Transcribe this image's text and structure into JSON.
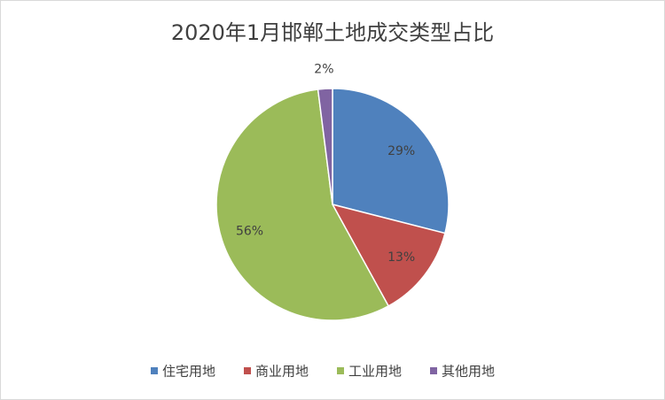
{
  "chart_data": {
    "type": "pie",
    "title": "2020年1月邯郸土地成交类型占比",
    "categories": [
      "住宅用地",
      "商业用地",
      "工业用地",
      "其他用地"
    ],
    "values": [
      29,
      13,
      56,
      2
    ],
    "value_labels": [
      "29%",
      "13%",
      "56%",
      "2%"
    ],
    "colors": [
      "#4f81bd",
      "#c0504d",
      "#9bbb59",
      "#8064a2"
    ],
    "legend": "bottom"
  }
}
